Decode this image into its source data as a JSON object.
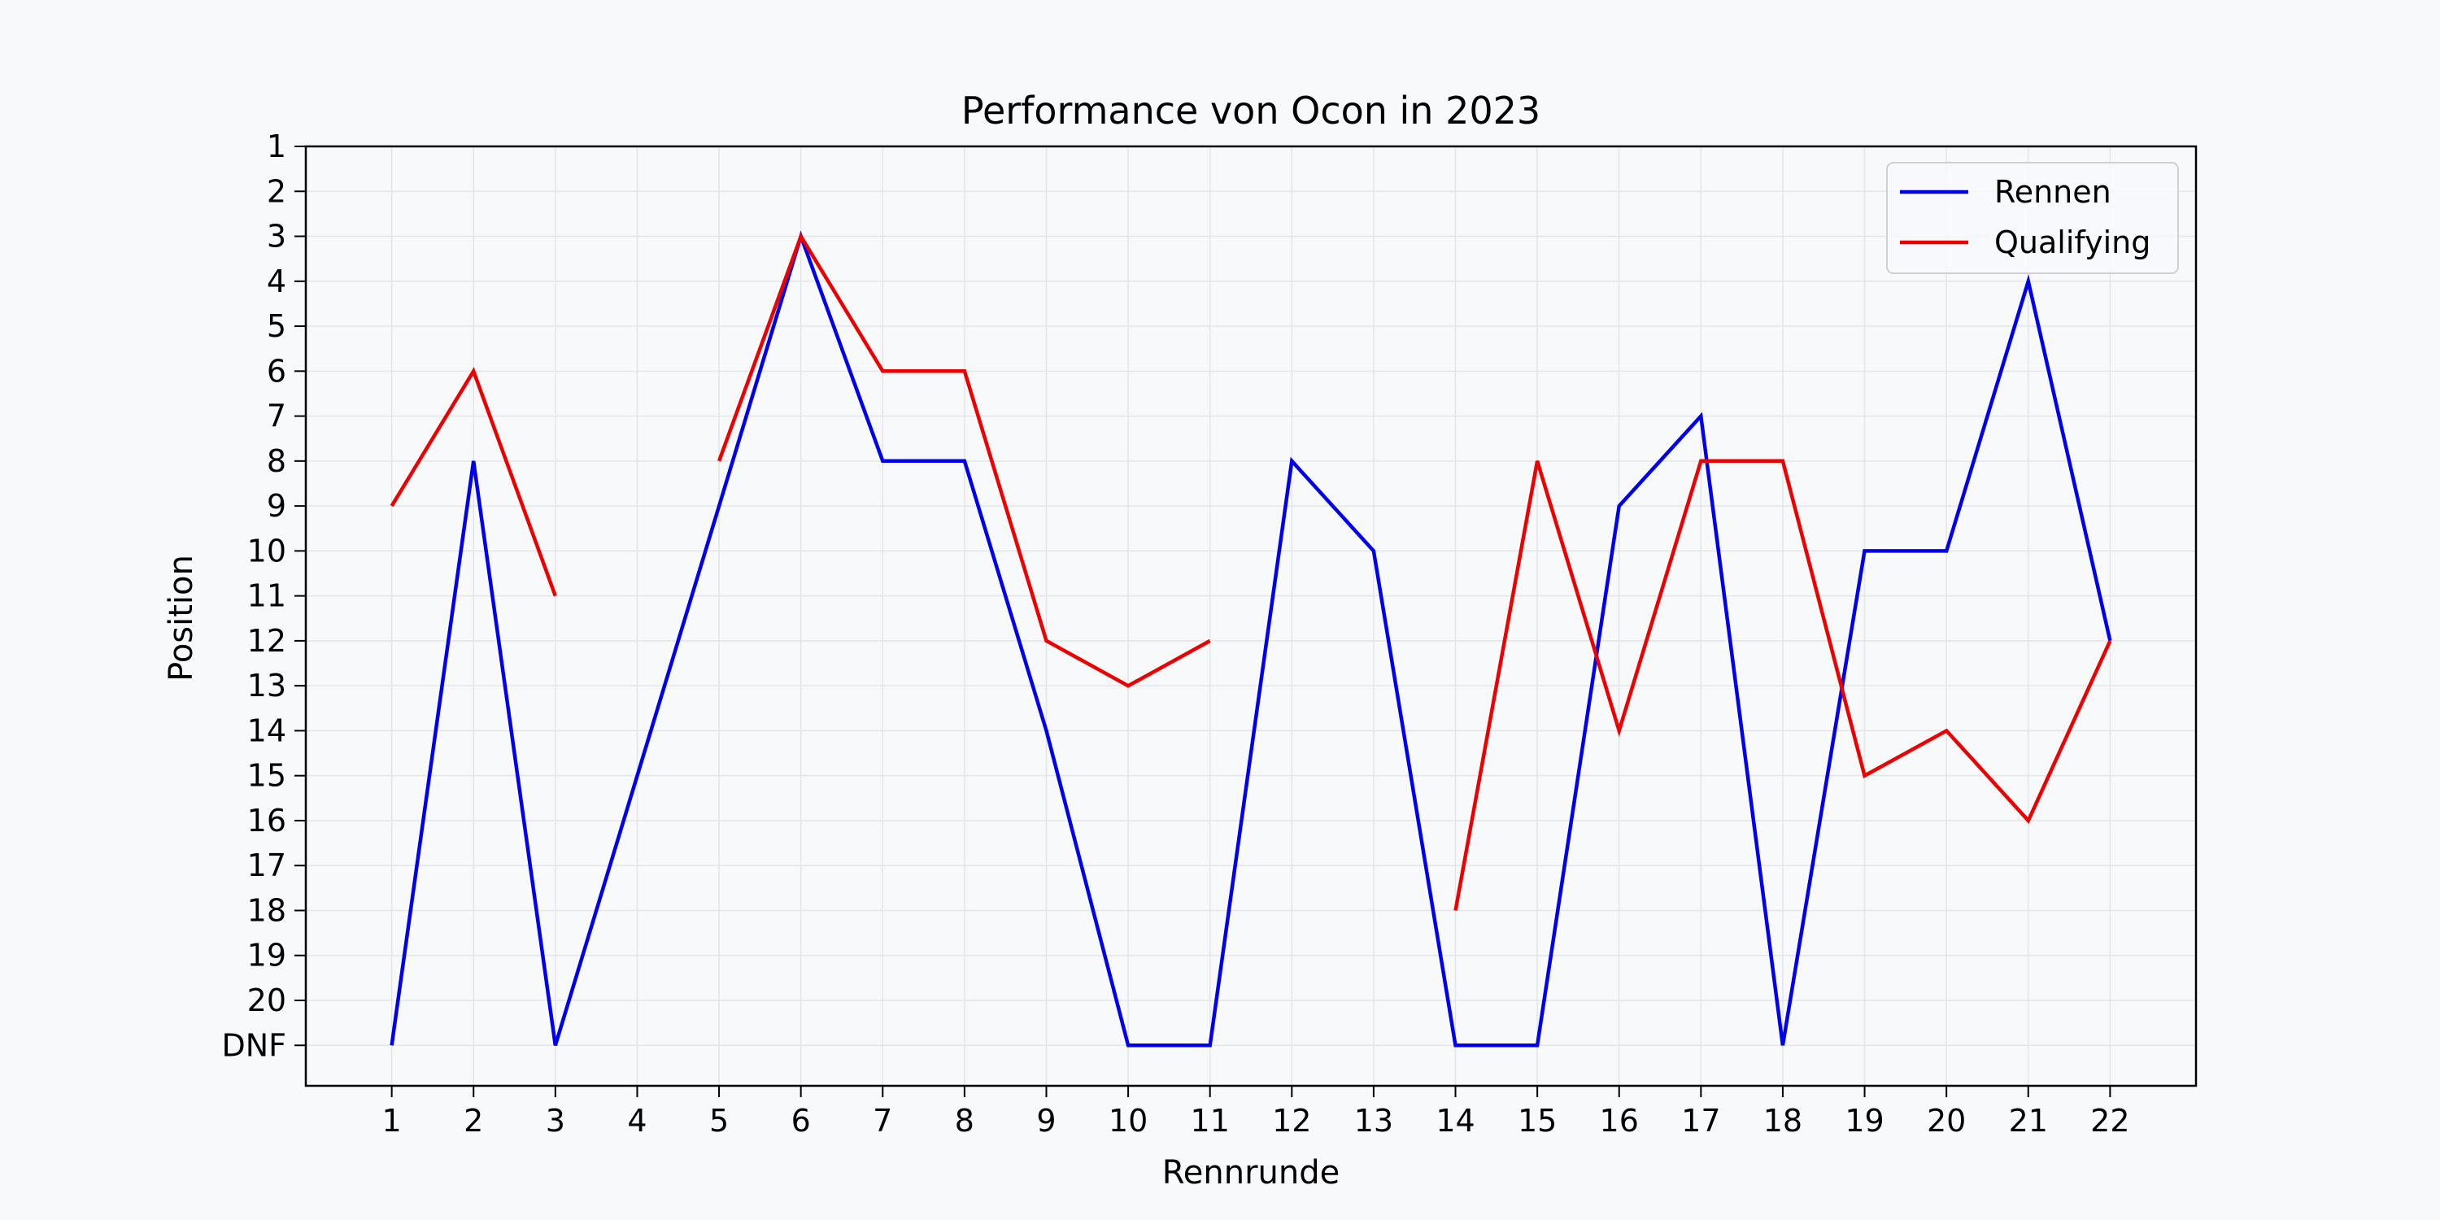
{
  "chart_data": {
    "type": "line",
    "title": "Performance von Ocon in 2023",
    "xlabel": "Rennrunde",
    "ylabel": "Position",
    "x": [
      1,
      2,
      3,
      4,
      5,
      6,
      7,
      8,
      9,
      10,
      11,
      12,
      13,
      14,
      15,
      16,
      17,
      18,
      19,
      20,
      21,
      22
    ],
    "y_ticks": [
      1,
      2,
      3,
      4,
      5,
      6,
      7,
      8,
      9,
      10,
      11,
      12,
      13,
      14,
      15,
      16,
      17,
      18,
      19,
      20,
      21
    ],
    "y_tick_labels": [
      "1",
      "2",
      "3",
      "4",
      "5",
      "6",
      "7",
      "8",
      "9",
      "10",
      "11",
      "12",
      "13",
      "14",
      "15",
      "16",
      "17",
      "18",
      "19",
      "20",
      "DNF"
    ],
    "y_inverted": true,
    "xlim": [
      -0.05,
      23.05
    ],
    "ylim": [
      21.9,
      1
    ],
    "grid": true,
    "legend_position": "top-right",
    "series": [
      {
        "name": "Rennen",
        "color": "#0000ee",
        "values": [
          21,
          8,
          21,
          15,
          9,
          3,
          8,
          8,
          14,
          21,
          21,
          8,
          10,
          21,
          21,
          9,
          7,
          21,
          10,
          10,
          4,
          12
        ]
      },
      {
        "name": "Qualifying",
        "color": "#ee0000",
        "values": [
          9,
          6,
          11,
          null,
          8,
          3,
          6,
          6,
          12,
          13,
          12,
          null,
          null,
          18,
          8,
          14,
          8,
          8,
          15,
          14,
          16,
          12
        ]
      }
    ]
  }
}
